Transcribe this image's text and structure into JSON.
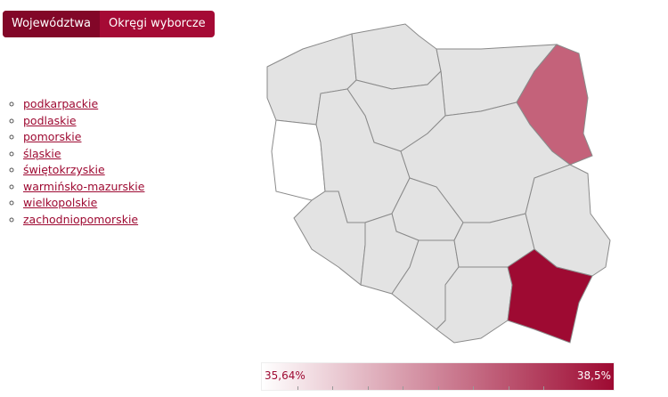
{
  "tabs": [
    {
      "label": "Województwa",
      "active": true
    },
    {
      "label": "Okręgi wyborcze",
      "active": false
    }
  ],
  "regions_list": [
    "podkarpackie",
    "podlaskie",
    "pomorskie",
    "śląskie",
    "świętokrzyskie",
    "warmińsko-mazurskie",
    "wielkopolskie",
    "zachodniopomorskie"
  ],
  "legend": {
    "min": "35,64%",
    "max": "38,5%",
    "color_min": "#ffffff",
    "color_max": "#9e0a32"
  },
  "map": {
    "default_fill": "#e3e3e3",
    "highlight": {
      "podkarpackie": "#9e0a32",
      "podlaskie": "#c4627a",
      "lubuskie": "#ffffff"
    }
  }
}
